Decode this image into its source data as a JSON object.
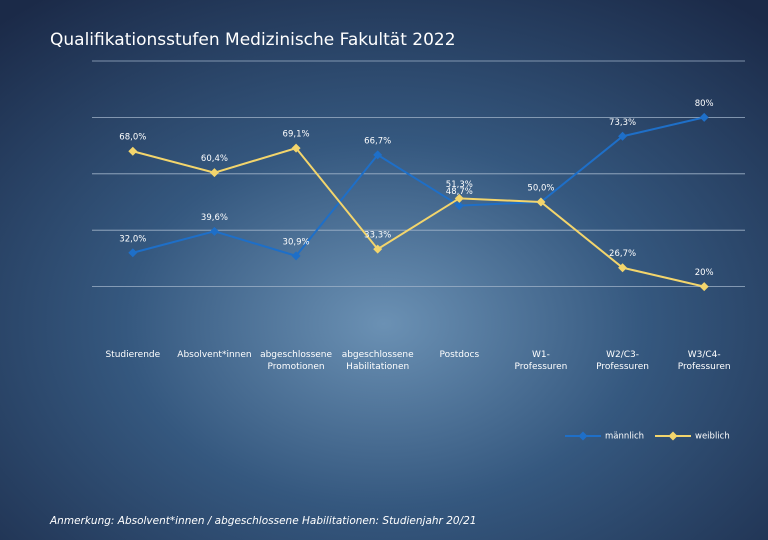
{
  "chart_data": {
    "type": "line",
    "title": "Qualifikationsstufen Medizinische Fakultät 2022",
    "categories": [
      [
        "Studierende"
      ],
      [
        "Absolvent*innen"
      ],
      [
        "abgeschlossene",
        "Promotionen"
      ],
      [
        "abgeschlossene",
        "Habilitationen"
      ],
      [
        "Postdocs"
      ],
      [
        "W1-",
        "Professuren"
      ],
      [
        "W2/C3-",
        "Professuren"
      ],
      [
        "W3/C4-",
        "Professuren"
      ]
    ],
    "series": [
      {
        "name": "männlich",
        "color": "#1e6fc8",
        "values": [
          32.0,
          39.6,
          30.9,
          66.7,
          48.7,
          50.0,
          73.3,
          80
        ],
        "value_labels": [
          "32,0%",
          "39,6%",
          "30,9%",
          "66,7%",
          "48,7%",
          "50,0%",
          "73,3%",
          "80%"
        ]
      },
      {
        "name": "weiblich",
        "color": "#f3d56c",
        "values": [
          68.0,
          60.4,
          69.1,
          33.3,
          51.3,
          50.0,
          26.7,
          20
        ],
        "value_labels": [
          "68,0%",
          "60,4%",
          "69,1%",
          "33,3%",
          "51,3%",
          null,
          "26,7%",
          "20%"
        ]
      }
    ],
    "ylim": [
      0,
      100
    ],
    "gridlines": [
      20,
      40,
      60,
      80,
      100
    ],
    "grid": true,
    "legend": "bottom-right",
    "note": "Anmerkung: Absolvent*innen / abgeschlossene Habilitationen: Studienjahr 20/21"
  }
}
